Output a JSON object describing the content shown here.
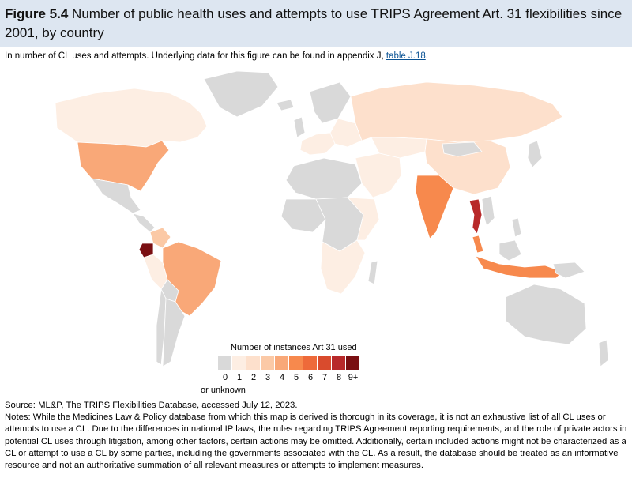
{
  "title": {
    "figure_label": "Figure 5.4",
    "text": "Number of public health uses and attempts to use TRIPS Agreement Art. 31 flexibilities since 2001, by country"
  },
  "subtitle": {
    "text": "In number of CL uses and attempts. Underlying data for this figure can be found in appendix J,",
    "link": "table J.18",
    "end": "."
  },
  "legend": {
    "title": "Number of instances Art 31 used",
    "labels": [
      "0",
      "1",
      "2",
      "3",
      "4",
      "5",
      "6",
      "7",
      "8",
      "9+"
    ],
    "unknown_label": "or unknown",
    "colors": [
      "#d9d9d9",
      "#fdeee3",
      "#fde0cc",
      "#fbc9a6",
      "#f9a878",
      "#f7894d",
      "#ee6a3a",
      "#d94b2d",
      "#b8292a",
      "#7a0f12"
    ]
  },
  "footer": {
    "source": "Source: ML&P, The TRIPS Flexibilities Database, accessed July 12, 2023.",
    "notes": "Notes: While the Medicines Law & Policy database from which this map is derived is thorough in its coverage, it is not an exhaustive list of all CL uses or attempts to use a CL. Due to the differences in national IP laws, the rules regarding TRIPS Agreement reporting requirements, and the role of private actors in potential CL uses through litigation, among other factors, certain actions may be omitted. Additionally, certain included actions might not be characterized as a CL or attempt to use a CL by some parties, including the governments associated with the CL. As a result, the database should be treated as an informative resource and not an authoritative summation of all relevant measures or attempts to implement measures."
  },
  "map_regions": [
    {
      "name": "canada",
      "value": 1
    },
    {
      "name": "united-states",
      "value": 4
    },
    {
      "name": "mexico",
      "value": 0
    },
    {
      "name": "brazil",
      "value": 4
    },
    {
      "name": "ecuador",
      "value": 9
    },
    {
      "name": "colombia",
      "value": 3
    },
    {
      "name": "russia",
      "value": 2
    },
    {
      "name": "china",
      "value": 2
    },
    {
      "name": "india",
      "value": 5
    },
    {
      "name": "thailand",
      "value": 8
    },
    {
      "name": "indonesia",
      "value": 5
    },
    {
      "name": "malaysia",
      "value": 5
    },
    {
      "name": "australia",
      "value": 0
    },
    {
      "name": "greenland",
      "value": 0
    }
  ]
}
